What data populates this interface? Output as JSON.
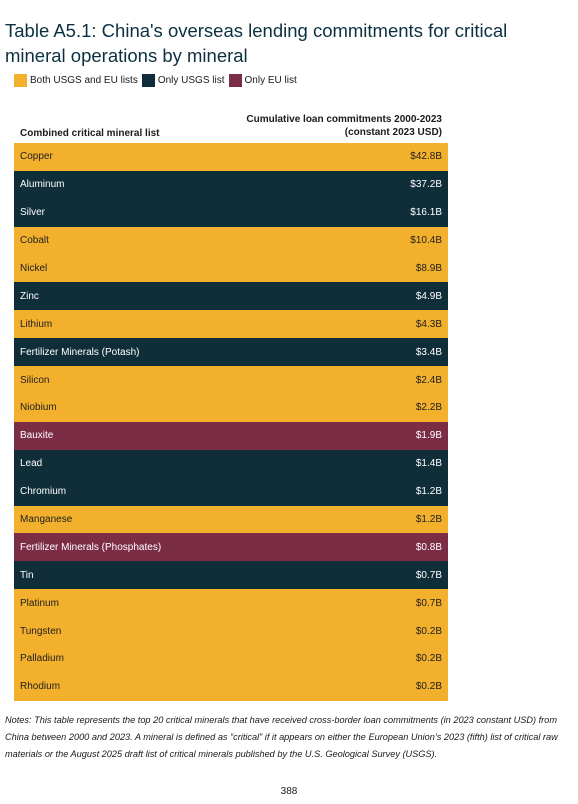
{
  "title": "Table A5.1: China's overseas lending commitments for critical mineral operations by mineral",
  "legend": [
    {
      "label": "Both USGS and EU lists",
      "color": "#f2b02d"
    },
    {
      "label": "Only USGS list",
      "color": "#0f2e3a"
    },
    {
      "label": "Only EU list",
      "color": "#7c2d46"
    }
  ],
  "columns": {
    "mineral": "Combined critical mineral list",
    "value": "Cumulative loan commitments 2000-2023 (constant 2023 USD)"
  },
  "rows": [
    {
      "mineral": "Copper",
      "value": "$42.8B",
      "list": "both"
    },
    {
      "mineral": "Aluminum",
      "value": "$37.2B",
      "list": "usgs"
    },
    {
      "mineral": "Silver",
      "value": "$16.1B",
      "list": "usgs"
    },
    {
      "mineral": "Cobalt",
      "value": "$10.4B",
      "list": "both"
    },
    {
      "mineral": "Nickel",
      "value": "$8.9B",
      "list": "both"
    },
    {
      "mineral": "Zinc",
      "value": "$4.9B",
      "list": "usgs"
    },
    {
      "mineral": "Lithium",
      "value": "$4.3B",
      "list": "both"
    },
    {
      "mineral": "Fertilizer Minerals (Potash)",
      "value": "$3.4B",
      "list": "usgs"
    },
    {
      "mineral": "Silicon",
      "value": "$2.4B",
      "list": "both"
    },
    {
      "mineral": "Niobium",
      "value": "$2.2B",
      "list": "both"
    },
    {
      "mineral": "Bauxite",
      "value": "$1.9B",
      "list": "eu"
    },
    {
      "mineral": "Lead",
      "value": "$1.4B",
      "list": "usgs"
    },
    {
      "mineral": "Chromium",
      "value": "$1.2B",
      "list": "usgs"
    },
    {
      "mineral": "Manganese",
      "value": "$1.2B",
      "list": "both"
    },
    {
      "mineral": "Fertilizer Minerals (Phosphates)",
      "value": "$0.8B",
      "list": "eu"
    },
    {
      "mineral": "Tin",
      "value": "$0.7B",
      "list": "usgs"
    },
    {
      "mineral": "Platinum",
      "value": "$0.7B",
      "list": "both"
    },
    {
      "mineral": "Tungsten",
      "value": "$0.2B",
      "list": "both"
    },
    {
      "mineral": "Palladium",
      "value": "$0.2B",
      "list": "both"
    },
    {
      "mineral": "Rhodium",
      "value": "$0.2B",
      "list": "both"
    }
  ],
  "notes": "Notes: This table represents the top 20 critical minerals that have received cross-border loan commitments (in 2023 constant USD) from China between 2000 and 2023. A mineral is defined as “critical” if it appears on either the European Union’s 2023 (fifth) list of critical raw materials or the August 2025 draft list of critical minerals published by the U.S. Geological Survey (USGS).",
  "page_number": "388"
}
